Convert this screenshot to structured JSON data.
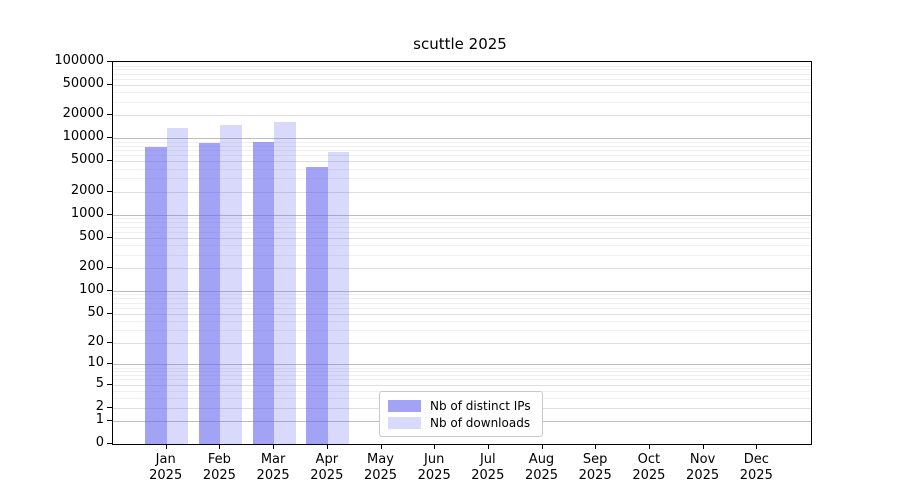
{
  "chart_data": {
    "type": "bar",
    "title": "scuttle 2025",
    "scale": "log1p",
    "ylim": [
      0,
      100000
    ],
    "grid": true,
    "legend_position": "inside-bottom-center",
    "categories": [
      "Jan",
      "Feb",
      "Mar",
      "Apr",
      "May",
      "Jun",
      "Jul",
      "Aug",
      "Sep",
      "Oct",
      "Nov",
      "Dec"
    ],
    "x_sublabel": "2025",
    "y_ticks": [
      100000,
      50000,
      20000,
      10000,
      5000,
      2000,
      1000,
      500,
      200,
      100,
      50,
      20,
      10,
      5,
      2,
      1,
      0
    ],
    "series": [
      {
        "name": "Nb of distinct IPs",
        "color": "rgba(102,102,238,0.6)",
        "swatch_color": "#a3a3f5",
        "values": [
          7700,
          8600,
          9000,
          4200,
          null,
          null,
          null,
          null,
          null,
          null,
          null,
          null
        ]
      },
      {
        "name": "Nb of downloads",
        "color": "rgba(102,102,238,0.25)",
        "swatch_color": "#d9d9fb",
        "values": [
          13500,
          15000,
          16500,
          6700,
          null,
          null,
          null,
          null,
          null,
          null,
          null,
          null
        ]
      }
    ],
    "colors": {
      "grid_decade": "#bdbdbd",
      "grid_light": "#dedede",
      "grid_minor": "#efefef",
      "spine": "#000000"
    }
  }
}
